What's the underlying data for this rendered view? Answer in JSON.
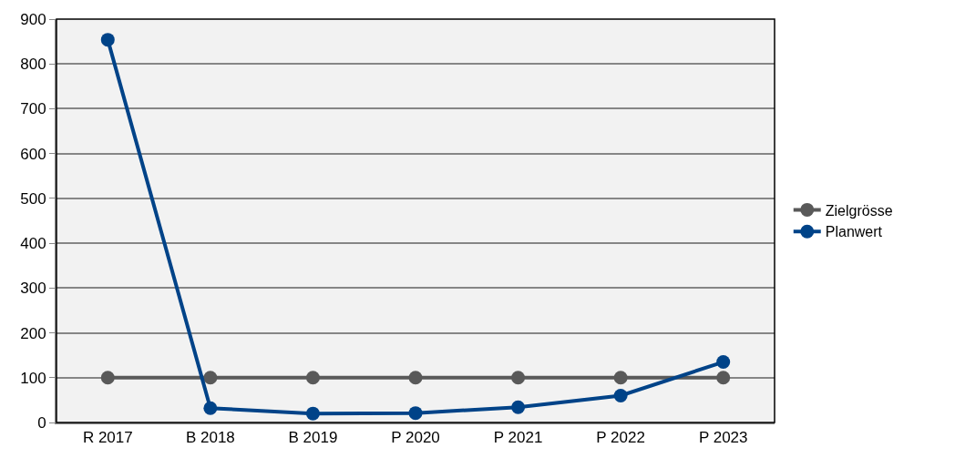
{
  "chart_data": {
    "type": "line",
    "categories": [
      "R 2017",
      "B 2018",
      "B 2019",
      "P 2020",
      "P 2021",
      "P 2022",
      "P 2023"
    ],
    "series": [
      {
        "name": "Zielgrösse",
        "color": "#595959",
        "values": [
          100,
          100,
          100,
          100,
          100,
          100,
          100
        ]
      },
      {
        "name": "Planwert",
        "color": "#004388",
        "values": [
          854,
          32,
          20,
          21,
          34,
          60,
          135
        ]
      }
    ],
    "ylim": [
      0,
      900
    ],
    "yticks": [
      0,
      100,
      200,
      300,
      400,
      500,
      600,
      700,
      800,
      900
    ],
    "grid": "y",
    "legend": "right",
    "marker": "circle",
    "line_style": "solid"
  }
}
